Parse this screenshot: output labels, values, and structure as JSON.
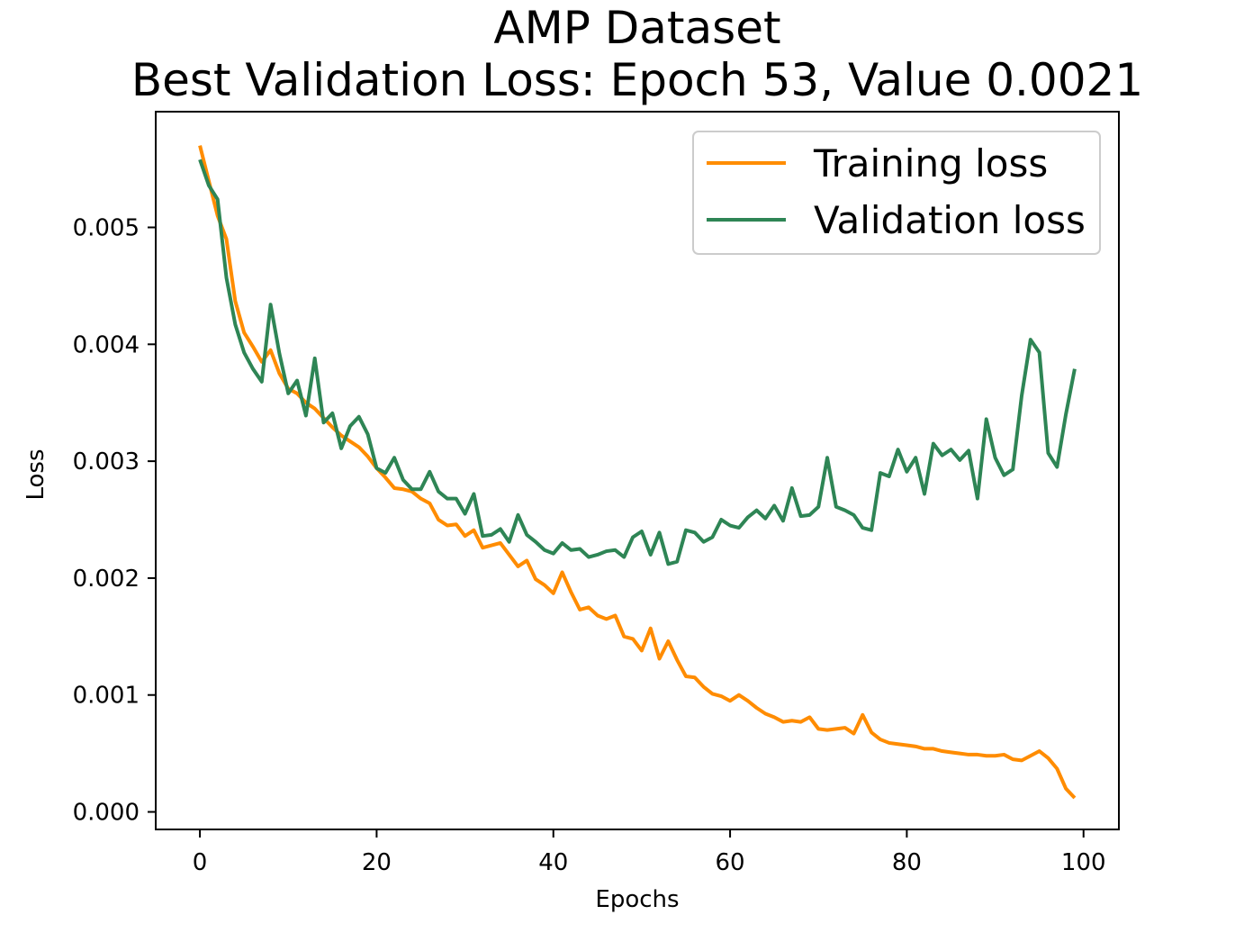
{
  "chart_data": {
    "type": "line",
    "title_lines": [
      "AMP Dataset",
      "Best Validation Loss: Epoch 53, Value 0.0021"
    ],
    "xlabel": "Epochs",
    "ylabel": "Loss",
    "xlim": [
      -5,
      104
    ],
    "ylim": [
      -0.00015,
      0.00599
    ],
    "x_ticks": [
      0,
      20,
      40,
      60,
      80,
      100
    ],
    "x_tick_labels": [
      "0",
      "20",
      "40",
      "60",
      "80",
      "100"
    ],
    "y_ticks": [
      0.0,
      0.001,
      0.002,
      0.003,
      0.004,
      0.005
    ],
    "y_tick_labels": [
      "0.000",
      "0.001",
      "0.002",
      "0.003",
      "0.004",
      "0.005"
    ],
    "grid": false,
    "legend_position": "top-right",
    "series": [
      {
        "name": "Training loss",
        "color": "#ff8c00",
        "x": [
          0,
          1,
          2,
          3,
          4,
          5,
          6,
          7,
          8,
          9,
          10,
          11,
          12,
          13,
          14,
          15,
          16,
          17,
          18,
          19,
          20,
          21,
          22,
          23,
          24,
          25,
          26,
          27,
          28,
          29,
          30,
          31,
          32,
          33,
          34,
          35,
          36,
          37,
          38,
          39,
          40,
          41,
          42,
          43,
          44,
          45,
          46,
          47,
          48,
          49,
          50,
          51,
          52,
          53,
          54,
          55,
          56,
          57,
          58,
          59,
          60,
          61,
          62,
          63,
          64,
          65,
          66,
          67,
          68,
          69,
          70,
          71,
          72,
          73,
          74,
          75,
          76,
          77,
          78,
          79,
          80,
          81,
          82,
          83,
          84,
          85,
          86,
          87,
          88,
          89,
          90,
          91,
          92,
          93,
          94,
          95,
          96,
          97,
          98,
          99
        ],
        "values": [
          0.0057,
          0.0054,
          0.0051,
          0.0049,
          0.00437,
          0.0041,
          0.00398,
          0.00385,
          0.00395,
          0.00375,
          0.00362,
          0.00358,
          0.0035,
          0.00345,
          0.00337,
          0.00329,
          0.00322,
          0.00317,
          0.00312,
          0.00304,
          0.00294,
          0.00286,
          0.00277,
          0.00276,
          0.00274,
          0.00268,
          0.00264,
          0.0025,
          0.00245,
          0.00246,
          0.00236,
          0.00241,
          0.00226,
          0.00228,
          0.0023,
          0.0022,
          0.0021,
          0.00215,
          0.00199,
          0.00194,
          0.00187,
          0.00205,
          0.00188,
          0.00173,
          0.00175,
          0.00168,
          0.00165,
          0.00168,
          0.0015,
          0.00148,
          0.00138,
          0.00157,
          0.00131,
          0.00146,
          0.0013,
          0.00116,
          0.00115,
          0.00107,
          0.00101,
          0.00099,
          0.00095,
          0.001,
          0.00095,
          0.00089,
          0.00084,
          0.00081,
          0.00077,
          0.00078,
          0.00077,
          0.00081,
          0.00071,
          0.0007,
          0.00071,
          0.00072,
          0.00067,
          0.00083,
          0.00068,
          0.00062,
          0.00059,
          0.00058,
          0.00057,
          0.00056,
          0.00054,
          0.00054,
          0.00052,
          0.00051,
          0.0005,
          0.00049,
          0.00049,
          0.00048,
          0.00048,
          0.00049,
          0.00045,
          0.00044,
          0.00048,
          0.00052,
          0.00046,
          0.00037,
          0.0002,
          0.00012
        ]
      },
      {
        "name": "Validation loss",
        "color": "#2e8555",
        "x": [
          0,
          1,
          2,
          3,
          4,
          5,
          6,
          7,
          8,
          9,
          10,
          11,
          12,
          13,
          14,
          15,
          16,
          17,
          18,
          19,
          20,
          21,
          22,
          23,
          24,
          25,
          26,
          27,
          28,
          29,
          30,
          31,
          32,
          33,
          34,
          35,
          36,
          37,
          38,
          39,
          40,
          41,
          42,
          43,
          44,
          45,
          46,
          47,
          48,
          49,
          50,
          51,
          52,
          53,
          54,
          55,
          56,
          57,
          58,
          59,
          60,
          61,
          62,
          63,
          64,
          65,
          66,
          67,
          68,
          69,
          70,
          71,
          72,
          73,
          74,
          75,
          76,
          77,
          78,
          79,
          80,
          81,
          82,
          83,
          84,
          85,
          86,
          87,
          88,
          89,
          90,
          91,
          92,
          93,
          94,
          95,
          96,
          97,
          98,
          99
        ],
        "values": [
          0.00558,
          0.00536,
          0.00524,
          0.00457,
          0.00417,
          0.00393,
          0.00379,
          0.00368,
          0.00434,
          0.00392,
          0.00358,
          0.00369,
          0.00339,
          0.00388,
          0.00333,
          0.00341,
          0.00311,
          0.0033,
          0.00338,
          0.00323,
          0.00294,
          0.0029,
          0.00303,
          0.00284,
          0.00276,
          0.00276,
          0.00291,
          0.00274,
          0.00268,
          0.00268,
          0.00255,
          0.00272,
          0.00236,
          0.00237,
          0.00242,
          0.00231,
          0.00254,
          0.00237,
          0.00231,
          0.00224,
          0.00221,
          0.0023,
          0.00224,
          0.00225,
          0.00218,
          0.0022,
          0.00223,
          0.00224,
          0.00218,
          0.00235,
          0.0024,
          0.0022,
          0.00239,
          0.00212,
          0.00214,
          0.00241,
          0.00239,
          0.00231,
          0.00235,
          0.0025,
          0.00245,
          0.00243,
          0.00252,
          0.00258,
          0.00251,
          0.00262,
          0.00249,
          0.00277,
          0.00253,
          0.00254,
          0.00261,
          0.00303,
          0.00261,
          0.00258,
          0.00254,
          0.00243,
          0.00241,
          0.0029,
          0.00287,
          0.0031,
          0.00291,
          0.00303,
          0.00272,
          0.00315,
          0.00305,
          0.0031,
          0.00301,
          0.00309,
          0.00268,
          0.00336,
          0.00303,
          0.00288,
          0.00293,
          0.00356,
          0.00404,
          0.00393,
          0.00307,
          0.00295,
          0.0034,
          0.00379
        ]
      }
    ]
  }
}
